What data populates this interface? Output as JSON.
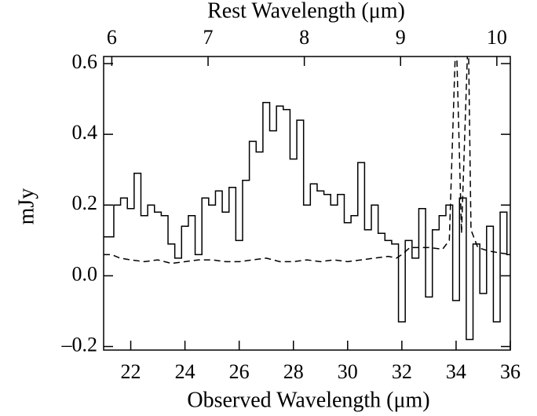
{
  "chart_data": {
    "type": "step",
    "x_label": "Observed Wavelength (μm)",
    "x2_label": "Rest Wavelength (μm)",
    "y_label": "mJy",
    "xlim": [
      21,
      36
    ],
    "xticks": [
      22,
      24,
      26,
      28,
      30,
      32,
      34,
      36
    ],
    "x2lim": [
      5.915,
      10.14
    ],
    "x2ticks": [
      6,
      7,
      8,
      9,
      10
    ],
    "ylim": [
      -0.21,
      0.62
    ],
    "yticks": [
      {
        "value": -0.2,
        "label": "–0.2"
      },
      {
        "value": 0,
        "label": "0.0"
      },
      0.2,
      0.4,
      0.6
    ],
    "series": [
      {
        "style": "solid",
        "color": "#000000",
        "x": [
          21.0,
          21.25,
          21.5,
          21.75,
          22.0,
          22.25,
          22.5,
          22.75,
          23.0,
          23.25,
          23.5,
          23.75,
          24.0,
          24.25,
          24.5,
          24.75,
          25.0,
          25.25,
          25.5,
          25.75,
          26.0,
          26.25,
          26.5,
          26.75,
          27.0,
          27.25,
          27.5,
          27.75,
          28.0,
          28.25,
          28.5,
          28.75,
          29.0,
          29.25,
          29.5,
          29.75,
          30.0,
          30.25,
          30.5,
          30.75,
          31.0,
          31.25,
          31.5,
          31.75,
          32.0,
          32.25,
          32.5,
          32.75,
          33.0,
          33.25,
          33.5,
          33.75,
          34.0,
          34.25,
          34.5,
          34.75,
          35.0,
          35.25,
          35.5,
          35.75,
          36.0
        ],
        "values": [
          0.11,
          0.11,
          0.2,
          0.22,
          0.19,
          0.29,
          0.17,
          0.2,
          0.18,
          0.17,
          0.09,
          0.05,
          0.14,
          0.17,
          0.06,
          0.22,
          0.2,
          0.24,
          0.18,
          0.25,
          0.1,
          0.27,
          0.38,
          0.35,
          0.49,
          0.41,
          0.48,
          0.47,
          0.33,
          0.44,
          0.2,
          0.26,
          0.24,
          0.23,
          0.2,
          0.23,
          0.15,
          0.17,
          0.32,
          0.13,
          0.2,
          0.12,
          0.1,
          0.09,
          -0.13,
          0.1,
          0.05,
          0.19,
          -0.06,
          0.13,
          0.17,
          0.2,
          -0.07,
          0.22,
          -0.18,
          0.09,
          -0.05,
          0.14,
          -0.13,
          0.18,
          0.06
        ]
      },
      {
        "style": "dashed",
        "color": "#000000",
        "x": [
          21.0,
          21.3,
          21.6,
          22.0,
          22.5,
          23.0,
          23.5,
          24.0,
          24.5,
          25.0,
          25.5,
          26.0,
          26.5,
          27.0,
          27.5,
          28.0,
          28.5,
          29.0,
          29.5,
          30.0,
          30.5,
          31.0,
          31.5,
          31.8,
          32.0,
          32.3,
          32.6,
          33.0,
          33.5,
          33.75,
          34.0,
          34.2,
          34.45,
          34.55,
          34.8,
          35.2,
          35.6,
          36.0
        ],
        "values": [
          0.06,
          0.06,
          0.05,
          0.045,
          0.04,
          0.045,
          0.035,
          0.04,
          0.045,
          0.045,
          0.04,
          0.04,
          0.045,
          0.05,
          0.04,
          0.04,
          0.045,
          0.04,
          0.045,
          0.04,
          0.045,
          0.05,
          0.055,
          0.05,
          0.06,
          0.08,
          0.08,
          0.08,
          0.075,
          0.1,
          0.7,
          0.12,
          0.7,
          0.13,
          0.08,
          0.07,
          0.065,
          0.06
        ]
      }
    ]
  }
}
